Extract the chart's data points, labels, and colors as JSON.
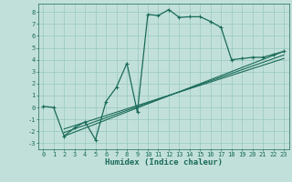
{
  "xlabel": "Humidex (Indice chaleur)",
  "bg_color": "#c2e0da",
  "grid_color": "#9eccc4",
  "line_color": "#1a6b5a",
  "xlim": [
    -0.5,
    23.5
  ],
  "ylim": [
    -3.5,
    8.7
  ],
  "xticks": [
    0,
    1,
    2,
    3,
    4,
    5,
    6,
    7,
    8,
    9,
    10,
    11,
    12,
    13,
    14,
    15,
    16,
    17,
    18,
    19,
    20,
    21,
    22,
    23
  ],
  "yticks": [
    -3,
    -2,
    -1,
    0,
    1,
    2,
    3,
    4,
    5,
    6,
    7,
    8
  ],
  "series1_x": [
    0,
    1,
    2,
    3,
    4,
    5,
    6,
    7,
    8,
    9,
    10,
    11,
    12,
    13,
    14,
    15,
    16,
    17,
    18,
    19,
    20,
    21,
    22,
    23
  ],
  "series1_y": [
    0.1,
    0.0,
    -2.4,
    -1.7,
    -1.2,
    -2.7,
    0.5,
    1.7,
    3.7,
    -0.4,
    7.8,
    7.7,
    8.2,
    7.55,
    7.6,
    7.6,
    7.2,
    6.7,
    4.0,
    4.1,
    4.2,
    4.2,
    4.45,
    4.7
  ],
  "line1_x": [
    2,
    23
  ],
  "line1_y": [
    -2.4,
    4.7
  ],
  "line2_x": [
    2,
    23
  ],
  "line2_y": [
    -2.1,
    4.4
  ],
  "line3_x": [
    2,
    23
  ],
  "line3_y": [
    -1.8,
    4.1
  ]
}
